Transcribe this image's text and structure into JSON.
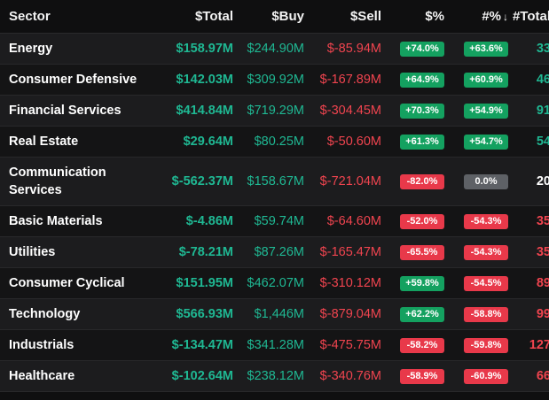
{
  "columns": {
    "sector": "Sector",
    "total": "$Total",
    "buy": "$Buy",
    "sell": "$Sell",
    "pct": "$%",
    "npct": "#%",
    "npct_sort": "↓",
    "count": "#Total"
  },
  "colors": {
    "positive": "#1fb893",
    "negative": "#f0444f",
    "badge_up": "#14a160",
    "badge_down": "#e8394a",
    "badge_flat": "#5e6166"
  },
  "rows": [
    {
      "sector": "Energy",
      "total": "$158.97M",
      "buy": "$244.90M",
      "sell": "$-85.94M",
      "pct": "+74.0%",
      "npct": "+63.6%",
      "count": "33"
    },
    {
      "sector": "Consumer Defensive",
      "total": "$142.03M",
      "buy": "$309.92M",
      "sell": "$-167.89M",
      "pct": "+64.9%",
      "npct": "+60.9%",
      "count": "46"
    },
    {
      "sector": "Financial Services",
      "total": "$414.84M",
      "buy": "$719.29M",
      "sell": "$-304.45M",
      "pct": "+70.3%",
      "npct": "+54.9%",
      "count": "91"
    },
    {
      "sector": "Real Estate",
      "total": "$29.64M",
      "buy": "$80.25M",
      "sell": "$-50.60M",
      "pct": "+61.3%",
      "npct": "+54.7%",
      "count": "54"
    },
    {
      "sector": "Communication Services",
      "total": "$-562.37M",
      "buy": "$158.67M",
      "sell": "$-721.04M",
      "pct": "-82.0%",
      "npct": "0.0%",
      "count": "20"
    },
    {
      "sector": "Basic Materials",
      "total": "$-4.86M",
      "buy": "$59.74M",
      "sell": "$-64.60M",
      "pct": "-52.0%",
      "npct": "-54.3%",
      "count": "35"
    },
    {
      "sector": "Utilities",
      "total": "$-78.21M",
      "buy": "$87.26M",
      "sell": "$-165.47M",
      "pct": "-65.5%",
      "npct": "-54.3%",
      "count": "35"
    },
    {
      "sector": "Consumer Cyclical",
      "total": "$151.95M",
      "buy": "$462.07M",
      "sell": "$-310.12M",
      "pct": "+59.8%",
      "npct": "-54.5%",
      "count": "89"
    },
    {
      "sector": "Technology",
      "total": "$566.93M",
      "buy": "$1,446M",
      "sell": "$-879.04M",
      "pct": "+62.2%",
      "npct": "-58.8%",
      "count": "99"
    },
    {
      "sector": "Industrials",
      "total": "$-134.47M",
      "buy": "$341.28M",
      "sell": "$-475.75M",
      "pct": "-58.2%",
      "npct": "-59.8%",
      "count": "127"
    },
    {
      "sector": "Healthcare",
      "total": "$-102.64M",
      "buy": "$238.12M",
      "sell": "$-340.76M",
      "pct": "-58.9%",
      "npct": "-60.9%",
      "count": "66"
    }
  ]
}
